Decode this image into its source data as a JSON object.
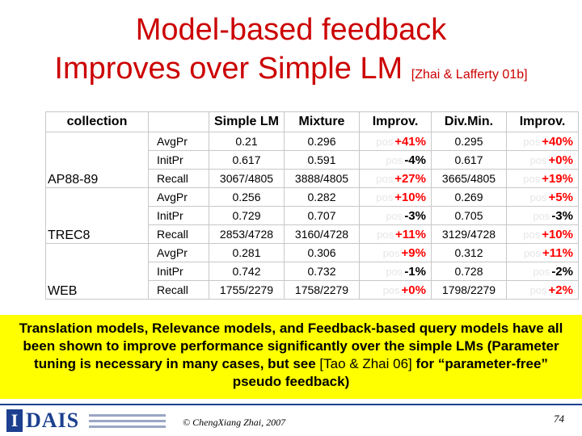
{
  "slide": {
    "title_line1": "Model-based feedback",
    "title_line2": "Improves over Simple LM ",
    "title_citation": "[Zhai & Lafferty 01b]"
  },
  "table": {
    "headers": [
      "collection",
      "Simple LM",
      "Mixture",
      "Improv.",
      "Div.Min.",
      "Improv."
    ],
    "pos_prefix": "pos",
    "groups": [
      {
        "collection": "AP88-89",
        "rows": [
          {
            "metric": "AvgPr",
            "simple": "0.21",
            "mixture": "0.296",
            "improv1": "+41%",
            "divmin": "0.295",
            "improv2": "+40%"
          },
          {
            "metric": "InitPr",
            "simple": "0.617",
            "mixture": "0.591",
            "improv1": "-4%",
            "divmin": "0.617",
            "improv2": "+0%"
          },
          {
            "metric": "Recall",
            "simple": "3067/4805",
            "mixture": "3888/4805",
            "improv1": "+27%",
            "divmin": "3665/4805",
            "improv2": "+19%"
          }
        ]
      },
      {
        "collection": "TREC8",
        "rows": [
          {
            "metric": "AvgPr",
            "simple": "0.256",
            "mixture": "0.282",
            "improv1": "+10%",
            "divmin": "0.269",
            "improv2": "+5%"
          },
          {
            "metric": "InitPr",
            "simple": "0.729",
            "mixture": "0.707",
            "improv1": "-3%",
            "divmin": "0.705",
            "improv2": "-3%"
          },
          {
            "metric": "Recall",
            "simple": "2853/4728",
            "mixture": "3160/4728",
            "improv1": "+11%",
            "divmin": "3129/4728",
            "improv2": "+10%"
          }
        ]
      },
      {
        "collection": "WEB",
        "rows": [
          {
            "metric": "AvgPr",
            "simple": "0.281",
            "mixture": "0.306",
            "improv1": "+9%",
            "divmin": "0.312",
            "improv2": "+11%"
          },
          {
            "metric": "InitPr",
            "simple": "0.742",
            "mixture": "0.732",
            "improv1": "-1%",
            "divmin": "0.728",
            "improv2": "-2%"
          },
          {
            "metric": "Recall",
            "simple": "1755/2279",
            "mixture": "1758/2279",
            "improv1": "+0%",
            "divmin": "1798/2279",
            "improv2": "+2%"
          }
        ]
      }
    ]
  },
  "note": {
    "text_bold": "Translation models, Relevance models, and Feedback-based query models have all been shown to improve performance significantly over the simple LMs (Parameter tuning is necessary in many cases, but see ",
    "text_plain": "[Tao & Zhai 06]",
    "text_bold_end": " for “parameter-free” pseudo feedback)"
  },
  "footer": {
    "logo_letter": "I",
    "logo_word": "DAIS",
    "copyright": "© ChengXiang Zhai, 2007",
    "page_number": "74"
  },
  "colors": {
    "title": "#cc0000",
    "positive_improvement": "#ff0000",
    "note_background": "#ffff00",
    "footer_rule": "#1c3f8f"
  }
}
